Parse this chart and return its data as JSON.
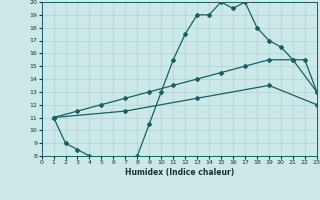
{
  "xlabel": "Humidex (Indice chaleur)",
  "xlim": [
    0,
    23
  ],
  "ylim": [
    8,
    20
  ],
  "xticks": [
    0,
    1,
    2,
    3,
    4,
    5,
    6,
    7,
    8,
    9,
    10,
    11,
    12,
    13,
    14,
    15,
    16,
    17,
    18,
    19,
    20,
    21,
    22,
    23
  ],
  "yticks": [
    8,
    9,
    10,
    11,
    12,
    13,
    14,
    15,
    16,
    17,
    18,
    19,
    20
  ],
  "bg_color": "#cce8e8",
  "line_color": "#1a6060",
  "grid_color": "#aad4d4",
  "line1_x": [
    1,
    2,
    3,
    4,
    5,
    6,
    7,
    8,
    9,
    10,
    11,
    12,
    13,
    14,
    15,
    16,
    17,
    18,
    19,
    20,
    21,
    22,
    23
  ],
  "line1_y": [
    11,
    9,
    8.5,
    8,
    7.7,
    7.5,
    7.5,
    8.0,
    10.5,
    13.0,
    15.5,
    17.5,
    19.0,
    19.0,
    20.0,
    19.5,
    20.0,
    18.0,
    17.0,
    16.5,
    15.5,
    15.5,
    13.0
  ],
  "line2_x": [
    1,
    3,
    5,
    7,
    9,
    11,
    13,
    15,
    17,
    19,
    21,
    23
  ],
  "line2_y": [
    11,
    11.5,
    12.0,
    12.5,
    13.0,
    13.5,
    14.0,
    14.5,
    15.0,
    15.5,
    15.5,
    13.0
  ],
  "line3_x": [
    1,
    7,
    13,
    19,
    23
  ],
  "line3_y": [
    11,
    11.5,
    12.5,
    13.5,
    12.0
  ]
}
